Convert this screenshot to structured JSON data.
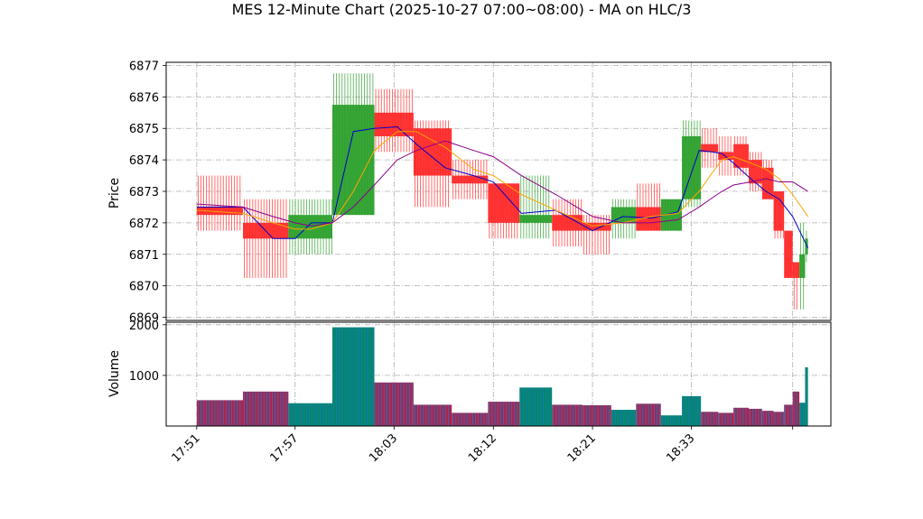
{
  "chart_data": {
    "type": "candlestick",
    "title": "MES 12-Minute Chart (2025-10-27 07:00~08:00) - MA on HLC/3",
    "price_panel": {
      "ylabel": "Price",
      "ylim": [
        6868.9,
        6877.1
      ],
      "yticks": [
        6869,
        6870,
        6871,
        6872,
        6873,
        6874,
        6875,
        6876,
        6877
      ],
      "grid": true
    },
    "volume_panel": {
      "ylabel": "Volume",
      "ylim": [
        0,
        2050
      ],
      "yticks": [
        1000,
        2000
      ],
      "grid": true
    },
    "xlim": [
      -1.6,
      33.2
    ],
    "x_ticks": [
      {
        "pos": 0,
        "label": "17:51"
      },
      {
        "pos": 5.15,
        "label": "17:57"
      },
      {
        "pos": 10.33,
        "label": "18:03"
      },
      {
        "pos": 15.53,
        "label": "18:12"
      },
      {
        "pos": 20.72,
        "label": "18:21"
      },
      {
        "pos": 25.9,
        "label": "18:33"
      },
      {
        "pos": 31.2,
        "label": ""
      }
    ],
    "colors": {
      "up": "#2ca02c",
      "down": "#ff2a2a",
      "vol_edge": "#1f77b4",
      "vol_up": "#00886a",
      "vol_down": "#b0204f"
    },
    "bars": [
      {
        "x0": 0,
        "x1": 2.42,
        "open": 6872.5,
        "high": 6873.5,
        "low": 6871.75,
        "close": 6872.25,
        "volume": 510
      },
      {
        "x0": 2.42,
        "x1": 4.8,
        "open": 6872.0,
        "high": 6872.75,
        "low": 6870.25,
        "close": 6871.5,
        "volume": 680
      },
      {
        "x0": 4.8,
        "x1": 7.1,
        "open": 6871.5,
        "high": 6872.75,
        "low": 6871.0,
        "close": 6872.25,
        "volume": 450
      },
      {
        "x0": 7.1,
        "x1": 9.3,
        "open": 6872.25,
        "high": 6876.75,
        "low": 6872.25,
        "close": 6875.75,
        "volume": 1950
      },
      {
        "x0": 9.3,
        "x1": 11.35,
        "open": 6875.5,
        "high": 6876.25,
        "low": 6874.25,
        "close": 6874.75,
        "volume": 860
      },
      {
        "x0": 11.35,
        "x1": 13.35,
        "open": 6875.0,
        "high": 6875.25,
        "low": 6872.5,
        "close": 6873.5,
        "volume": 420
      },
      {
        "x0": 13.35,
        "x1": 15.25,
        "open": 6873.5,
        "high": 6874.0,
        "low": 6872.75,
        "close": 6873.25,
        "volume": 260
      },
      {
        "x0": 15.25,
        "x1": 16.9,
        "open": 6873.25,
        "high": 6873.25,
        "low": 6871.5,
        "close": 6872.0,
        "volume": 480
      },
      {
        "x0": 16.9,
        "x1": 18.6,
        "open": 6872.0,
        "high": 6873.5,
        "low": 6871.5,
        "close": 6872.25,
        "volume": 760
      },
      {
        "x0": 18.6,
        "x1": 20.2,
        "open": 6872.25,
        "high": 6872.75,
        "low": 6871.25,
        "close": 6871.75,
        "volume": 420
      },
      {
        "x0": 20.2,
        "x1": 21.7,
        "open": 6872.0,
        "high": 6872.25,
        "low": 6871.0,
        "close": 6871.75,
        "volume": 410
      },
      {
        "x0": 21.7,
        "x1": 23.0,
        "open": 6872.0,
        "high": 6872.75,
        "low": 6871.5,
        "close": 6872.5,
        "volume": 320
      },
      {
        "x0": 23.0,
        "x1": 24.3,
        "open": 6872.5,
        "high": 6873.25,
        "low": 6871.75,
        "close": 6871.75,
        "volume": 440
      },
      {
        "x0": 24.3,
        "x1": 25.4,
        "open": 6871.75,
        "high": 6872.75,
        "low": 6871.75,
        "close": 6872.75,
        "volume": 210
      },
      {
        "x0": 25.4,
        "x1": 26.4,
        "open": 6872.75,
        "high": 6875.25,
        "low": 6872.5,
        "close": 6874.75,
        "volume": 590
      },
      {
        "x0": 26.4,
        "x1": 27.3,
        "open": 6874.5,
        "high": 6875.0,
        "low": 6873.75,
        "close": 6874.25,
        "volume": 280
      },
      {
        "x0": 27.3,
        "x1": 28.1,
        "open": 6874.25,
        "high": 6874.75,
        "low": 6873.5,
        "close": 6874.0,
        "volume": 260
      },
      {
        "x0": 28.1,
        "x1": 28.9,
        "open": 6874.5,
        "high": 6874.75,
        "low": 6873.5,
        "close": 6873.75,
        "volume": 360
      },
      {
        "x0": 28.9,
        "x1": 29.6,
        "open": 6874.0,
        "high": 6874.25,
        "low": 6873.0,
        "close": 6873.25,
        "volume": 340
      },
      {
        "x0": 29.6,
        "x1": 30.2,
        "open": 6873.75,
        "high": 6874.0,
        "low": 6872.75,
        "close": 6872.75,
        "volume": 300
      },
      {
        "x0": 30.2,
        "x1": 30.75,
        "open": 6873.0,
        "high": 6873.0,
        "low": 6871.5,
        "close": 6871.75,
        "volume": 280
      },
      {
        "x0": 30.75,
        "x1": 31.2,
        "open": 6871.75,
        "high": 6871.75,
        "low": 6870.25,
        "close": 6870.25,
        "volume": 420
      },
      {
        "x0": 31.2,
        "x1": 31.55,
        "open": 6870.75,
        "high": 6870.75,
        "low": 6869.25,
        "close": 6870.25,
        "volume": 680
      },
      {
        "x0": 31.55,
        "x1": 31.85,
        "open": 6870.25,
        "high": 6872.0,
        "low": 6869.25,
        "close": 6871.0,
        "volume": 460
      },
      {
        "x0": 31.85,
        "x1": 32.0,
        "open": 6871.0,
        "high": 6871.75,
        "low": 6870.75,
        "close": 6871.5,
        "volume": 1160
      }
    ],
    "ma_lines": [
      {
        "color": "#0000cc",
        "x": [
          0,
          2.42,
          4.0,
          5.15,
          6.0,
          7.1,
          8.2,
          9.3,
          10.5,
          11.5,
          13.0,
          14.5,
          15.53,
          17.0,
          18.8,
          20.72,
          22.3,
          23.8,
          25.2,
          26.3,
          27.0,
          27.5,
          28.1,
          29.0,
          29.8,
          30.5,
          31.2,
          32.0
        ],
        "y": [
          6872.5,
          6872.5,
          6871.5,
          6871.5,
          6872.0,
          6872.0,
          6874.9,
          6875.0,
          6875.05,
          6874.5,
          6873.75,
          6873.5,
          6873.3,
          6872.3,
          6872.4,
          6871.75,
          6872.2,
          6872.15,
          6872.35,
          6874.3,
          6874.25,
          6874.2,
          6873.9,
          6873.4,
          6873.0,
          6872.75,
          6872.2,
          6871.2
        ]
      },
      {
        "color": "#ffa500",
        "x": [
          0,
          2.42,
          4.0,
          5.15,
          6.0,
          7.1,
          8.2,
          9.3,
          10.5,
          11.5,
          13.0,
          14.5,
          15.53,
          17.0,
          18.8,
          20.72,
          22.3,
          23.8,
          25.2,
          26.3,
          27.0,
          27.5,
          28.1,
          29.0,
          29.8,
          30.5,
          31.2,
          32.0
        ],
        "y": [
          6872.4,
          6872.3,
          6872.0,
          6871.8,
          6871.8,
          6872.0,
          6873.0,
          6874.3,
          6874.9,
          6874.9,
          6874.4,
          6873.7,
          6873.5,
          6872.9,
          6872.4,
          6871.9,
          6872.0,
          6872.2,
          6872.3,
          6873.0,
          6873.6,
          6874.0,
          6874.1,
          6873.9,
          6873.7,
          6873.4,
          6872.9,
          6872.2
        ]
      },
      {
        "color": "#8b008b",
        "x": [
          0,
          2.42,
          4.0,
          5.15,
          6.0,
          7.1,
          8.2,
          9.3,
          10.5,
          11.5,
          13.0,
          14.5,
          15.53,
          17.0,
          18.8,
          20.72,
          22.3,
          23.8,
          25.2,
          26.3,
          27.0,
          27.5,
          28.1,
          29.0,
          29.8,
          30.5,
          31.2,
          32.0
        ],
        "y": [
          6872.6,
          6872.5,
          6872.2,
          6872.0,
          6871.9,
          6872.0,
          6872.5,
          6873.2,
          6874.0,
          6874.3,
          6874.6,
          6874.3,
          6874.1,
          6873.5,
          6872.9,
          6872.2,
          6872.0,
          6872.0,
          6872.1,
          6872.5,
          6872.8,
          6873.0,
          6873.2,
          6873.3,
          6873.4,
          6873.3,
          6873.3,
          6873.0
        ]
      }
    ]
  }
}
